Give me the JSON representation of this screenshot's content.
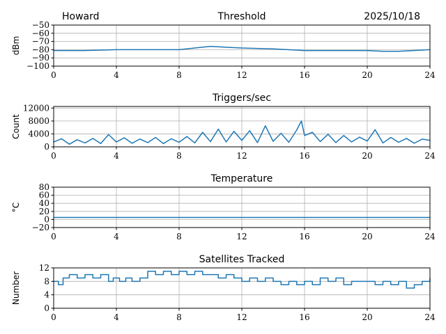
{
  "figure": {
    "header_left": "Howard",
    "header_right": "2025/10/18",
    "series_color": "#1f77b4"
  },
  "chart_data": [
    {
      "type": "line",
      "title": "Threshold",
      "xlabel": "",
      "ylabel": "dBm",
      "xlim": [
        0,
        24
      ],
      "ylim": [
        -100,
        -50
      ],
      "xticks": [
        "0",
        "4",
        "8",
        "12",
        "16",
        "20",
        "24"
      ],
      "yticks": [
        "−100",
        "−90",
        "−80",
        "−70",
        "−60",
        "−50"
      ],
      "grid": true,
      "x": [
        0,
        2,
        4,
        6,
        8,
        9,
        10,
        11,
        12,
        14,
        16,
        18,
        20,
        21,
        22,
        24
      ],
      "y": [
        -81,
        -81,
        -80,
        -80,
        -80,
        -78,
        -76,
        -77,
        -78,
        -79,
        -81,
        -81,
        -81,
        -82,
        -82,
        -80
      ]
    },
    {
      "type": "line",
      "title": "Triggers/sec",
      "xlabel": "",
      "ylabel": "Count",
      "xlim": [
        0,
        24
      ],
      "ylim": [
        0,
        12500
      ],
      "xticks": [
        "0",
        "4",
        "8",
        "12",
        "16",
        "20",
        "24"
      ],
      "yticks": [
        "0",
        "4000",
        "8000",
        "12000"
      ],
      "grid": true,
      "x": [
        0,
        0.5,
        1,
        1.5,
        2,
        2.5,
        3,
        3.5,
        4,
        4.5,
        5,
        5.5,
        6,
        6.5,
        7,
        7.5,
        8,
        8.5,
        9,
        9.5,
        10,
        10.5,
        11,
        11.5,
        12,
        12.5,
        13,
        13.5,
        14,
        14.5,
        15,
        15.5,
        15.8,
        16,
        16.5,
        17,
        17.5,
        18,
        18.5,
        19,
        19.5,
        20,
        20.5,
        21,
        21.5,
        22,
        22.5,
        23,
        23.5,
        24
      ],
      "y": [
        1500,
        2500,
        800,
        2200,
        1200,
        2600,
        1000,
        3800,
        1500,
        2800,
        1100,
        2400,
        1300,
        2900,
        1000,
        2500,
        1400,
        3200,
        1200,
        4500,
        1600,
        5500,
        1500,
        4800,
        2000,
        5000,
        1300,
        6500,
        1700,
        4200,
        1400,
        5200,
        8000,
        3500,
        4500,
        1600,
        3900,
        1300,
        3500,
        1500,
        3000,
        1800,
        5300,
        1200,
        2900,
        1400,
        2600,
        1100,
        2400,
        2000
      ]
    },
    {
      "type": "line",
      "title": "Temperature",
      "xlabel": "",
      "ylabel": "°C",
      "xlim": [
        0,
        24
      ],
      "ylim": [
        -20,
        80
      ],
      "xticks": [
        "0",
        "4",
        "8",
        "12",
        "16",
        "20",
        "24"
      ],
      "yticks": [
        "−20",
        "0",
        "20",
        "40",
        "60",
        "80"
      ],
      "grid": true,
      "x": [
        0,
        24
      ],
      "y": [
        5,
        5
      ]
    },
    {
      "type": "line",
      "title": "Satellites Tracked",
      "xlabel": "",
      "ylabel": "Number",
      "xlim": [
        0,
        24
      ],
      "ylim": [
        0,
        12
      ],
      "xticks": [
        "0",
        "4",
        "8",
        "12",
        "16",
        "20",
        "24"
      ],
      "yticks": [
        "0",
        "4",
        "8",
        "12"
      ],
      "grid": true,
      "step": true,
      "x": [
        0,
        0.3,
        0.6,
        1.0,
        1.5,
        2.0,
        2.5,
        3.0,
        3.5,
        3.8,
        4.2,
        4.6,
        5.0,
        5.5,
        6.0,
        6.5,
        7.0,
        7.5,
        8.0,
        8.5,
        9.0,
        9.5,
        10.0,
        10.5,
        11.0,
        11.5,
        12.0,
        12.5,
        13.0,
        13.5,
        14.0,
        14.5,
        15.0,
        15.5,
        16.0,
        16.5,
        17.0,
        17.5,
        18.0,
        18.5,
        19.0,
        19.5,
        20.0,
        20.5,
        21.0,
        21.5,
        22.0,
        22.5,
        23.0,
        23.5,
        24.0
      ],
      "y": [
        8,
        7,
        9,
        10,
        9,
        10,
        9,
        10,
        8,
        9,
        8,
        9,
        8,
        9,
        11,
        10,
        11,
        10,
        11,
        10,
        11,
        10,
        10,
        9,
        10,
        9,
        8,
        9,
        8,
        9,
        8,
        7,
        8,
        7,
        8,
        7,
        9,
        8,
        9,
        7,
        8,
        8,
        8,
        7,
        8,
        7,
        8,
        6,
        7,
        8,
        9
      ]
    }
  ]
}
